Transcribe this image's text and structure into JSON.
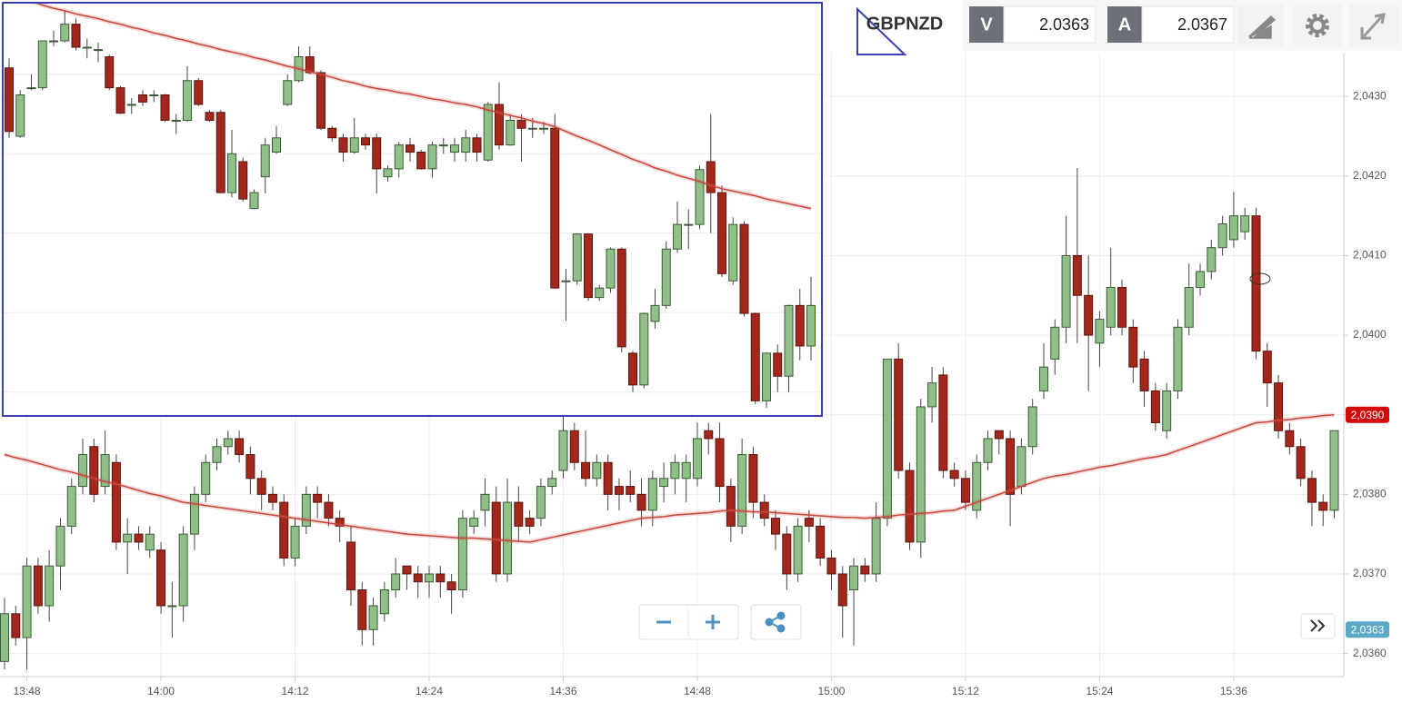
{
  "header": {
    "symbol": "GBPNZD",
    "bid_label": "V",
    "bid": 2.0363,
    "ask_label": "A",
    "ask": 2.0367
  },
  "chart_data": [
    {
      "type": "candlestick",
      "categories": [
        null,
        null,
        "13:48",
        null,
        null,
        null,
        null,
        null,
        null,
        null,
        null,
        null,
        null,
        null,
        "14:00",
        null,
        null,
        null,
        null,
        null,
        null,
        null,
        null,
        null,
        null,
        null,
        "14:12",
        null,
        null,
        null,
        null,
        null,
        null,
        null,
        null,
        null,
        null,
        null,
        "14:24",
        null,
        null,
        null,
        null,
        null,
        null,
        null,
        null,
        null,
        null,
        null,
        "14:36",
        null,
        null,
        null,
        null,
        null,
        null,
        null,
        null,
        null,
        null,
        null,
        "14:48",
        null,
        null,
        null,
        null,
        null,
        null,
        null,
        null,
        null,
        null,
        null,
        "15:00",
        null,
        null,
        null,
        null,
        null,
        null,
        null,
        null,
        null,
        null,
        null,
        "15:12",
        null,
        null,
        null,
        null,
        null,
        null,
        null,
        null,
        null,
        null,
        null,
        "15:24",
        null,
        null,
        null,
        null,
        null,
        null,
        null,
        null,
        null,
        null,
        null,
        "15:36",
        null,
        null,
        null,
        null,
        null,
        null,
        null,
        null,
        null
      ],
      "open": [
        2.0359,
        2.0365,
        2.0362,
        2.0371,
        2.0366,
        2.0371,
        2.0376,
        2.0381,
        2.0386,
        2.0381,
        2.0384,
        2.0374,
        2.0375,
        2.0373,
        2.0373,
        2.0366,
        2.0366,
        2.0375,
        2.038,
        2.0384,
        2.0386,
        2.0387,
        2.0385,
        2.0382,
        2.038,
        2.0379,
        2.0372,
        2.0376,
        2.038,
        2.0379,
        2.0377,
        2.0374,
        2.0368,
        2.0363,
        2.0365,
        2.0368,
        2.0371,
        2.037,
        2.0369,
        2.037,
        2.0369,
        2.0368,
        2.0376,
        2.0378,
        2.0379,
        2.037,
        2.0379,
        2.0377,
        2.0377,
        2.0381,
        2.0383,
        2.0388,
        2.0384,
        2.0382,
        2.0384,
        2.0381,
        2.0381,
        2.038,
        2.0378,
        2.0381,
        2.0382,
        2.0382,
        2.0382,
        2.0388,
        2.0387,
        2.0381,
        2.0376,
        2.0385,
        2.0379,
        2.0377,
        2.0375,
        2.037,
        2.0377,
        2.0376,
        2.0372,
        2.037,
        2.0368,
        2.0371,
        2.037,
        2.0377,
        2.0397,
        2.0383,
        2.0374,
        2.0391,
        2.0395,
        2.0383,
        2.0382,
        2.0378,
        2.0384,
        2.0388,
        2.0387,
        2.0381,
        2.0386,
        2.0393,
        2.0397,
        2.0401,
        2.041,
        2.0405,
        2.0399,
        2.0401,
        2.0406,
        2.0401,
        2.0397,
        2.0393,
        2.0388,
        2.0393,
        2.0401,
        2.0406,
        2.0408,
        2.0411,
        2.0412,
        2.0413,
        2.0415,
        2.0398,
        2.0394,
        2.0388,
        2.0386,
        2.0382,
        2.0379,
        2.0378
      ],
      "high": [
        2.0367,
        2.0366,
        2.0372,
        2.0372,
        2.0373,
        2.0377,
        2.0382,
        2.0387,
        2.0387,
        2.0388,
        2.0385,
        2.0377,
        2.0376,
        2.0376,
        2.0374,
        2.0369,
        2.0376,
        2.0381,
        2.0385,
        2.0387,
        2.0388,
        2.0388,
        2.0386,
        2.0383,
        2.0381,
        2.038,
        2.0377,
        2.0381,
        2.0381,
        2.038,
        2.0378,
        2.0376,
        2.0369,
        2.0367,
        2.0369,
        2.0372,
        2.0371,
        2.0371,
        2.0371,
        2.0371,
        2.037,
        2.0378,
        2.0378,
        2.0382,
        2.0381,
        2.0382,
        2.0381,
        2.0378,
        2.0382,
        2.0383,
        2.0391,
        2.0389,
        2.0388,
        2.0385,
        2.0385,
        2.0382,
        2.0383,
        2.0382,
        2.0383,
        2.0384,
        2.0385,
        2.0385,
        2.0389,
        2.0389,
        2.0389,
        2.0382,
        2.0387,
        2.0386,
        2.038,
        2.0378,
        2.0376,
        2.0377,
        2.0378,
        2.0377,
        2.0373,
        2.0371,
        2.0372,
        2.0372,
        2.0379,
        2.0397,
        2.0399,
        2.0384,
        2.0392,
        2.0396,
        2.0396,
        2.0384,
        2.0383,
        2.0385,
        2.0388,
        2.0388,
        2.0388,
        2.0387,
        2.0392,
        2.0399,
        2.0402,
        2.0415,
        2.0421,
        2.041,
        2.0403,
        2.0411,
        2.0407,
        2.0402,
        2.0398,
        2.0394,
        2.0394,
        2.0402,
        2.0409,
        2.0409,
        2.0412,
        2.0415,
        2.0418,
        2.0416,
        2.0416,
        2.0399,
        2.0395,
        2.0389,
        2.0387,
        2.0383,
        2.038,
        2.0388
      ],
      "low": [
        2.0358,
        2.0361,
        2.0358,
        2.0365,
        2.0364,
        2.0368,
        2.0375,
        2.038,
        2.0379,
        2.038,
        2.0373,
        2.037,
        2.0373,
        2.0372,
        2.0365,
        2.0362,
        2.0364,
        2.0373,
        2.0379,
        2.0383,
        2.0385,
        2.0384,
        2.038,
        2.0378,
        2.0378,
        2.0371,
        2.0371,
        2.0375,
        2.0377,
        2.0376,
        2.0374,
        2.0366,
        2.0361,
        2.0361,
        2.0364,
        2.0367,
        2.0368,
        2.0367,
        2.0367,
        2.0367,
        2.0365,
        2.0367,
        2.0375,
        2.0376,
        2.0369,
        2.0369,
        2.0374,
        2.0375,
        2.0376,
        2.038,
        2.0382,
        2.0383,
        2.0381,
        2.0381,
        2.0378,
        2.0378,
        2.0379,
        2.0376,
        2.0376,
        2.0379,
        2.038,
        2.0379,
        2.0381,
        2.0385,
        2.0379,
        2.0374,
        2.0375,
        2.0377,
        2.0376,
        2.0373,
        2.0368,
        2.0369,
        2.0374,
        2.0371,
        2.0368,
        2.0362,
        2.0361,
        2.0369,
        2.0369,
        2.0376,
        2.0382,
        2.0373,
        2.0372,
        2.0389,
        2.0382,
        2.0381,
        2.0378,
        2.0377,
        2.0383,
        2.0385,
        2.0376,
        2.038,
        2.0385,
        2.0392,
        2.0395,
        2.0399,
        2.0399,
        2.0393,
        2.0396,
        2.04,
        2.04,
        2.0394,
        2.0391,
        2.0388,
        2.0387,
        2.0392,
        2.04,
        2.0405,
        2.0407,
        2.041,
        2.0411,
        2.0412,
        2.0397,
        2.0391,
        2.0387,
        2.0385,
        2.0381,
        2.0376,
        2.0376,
        2.0377
      ],
      "close": [
        2.0365,
        2.0362,
        2.0371,
        2.0366,
        2.0371,
        2.0376,
        2.0381,
        2.0385,
        2.038,
        2.0385,
        2.0374,
        2.0375,
        2.0374,
        2.0375,
        2.0366,
        2.0366,
        2.0375,
        2.038,
        2.0384,
        2.0386,
        2.0387,
        2.0385,
        2.0382,
        2.038,
        2.0379,
        2.0372,
        2.0376,
        2.038,
        2.0379,
        2.0377,
        2.0376,
        2.0368,
        2.0363,
        2.0366,
        2.0368,
        2.037,
        2.037,
        2.0369,
        2.037,
        2.0369,
        2.0368,
        2.0377,
        2.0377,
        2.038,
        2.037,
        2.0379,
        2.0376,
        2.0376,
        2.0381,
        2.0382,
        2.0388,
        2.0384,
        2.0382,
        2.0384,
        2.038,
        2.038,
        2.038,
        2.0378,
        2.0382,
        2.0382,
        2.0384,
        2.0384,
        2.0387,
        2.0387,
        2.0381,
        2.0376,
        2.0385,
        2.0379,
        2.0377,
        2.0375,
        2.037,
        2.0376,
        2.0376,
        2.0372,
        2.037,
        2.0366,
        2.0371,
        2.037,
        2.0377,
        2.0397,
        2.0383,
        2.0374,
        2.0391,
        2.0394,
        2.0383,
        2.0382,
        2.0379,
        2.0384,
        2.0387,
        2.0387,
        2.038,
        2.0386,
        2.0391,
        2.0396,
        2.0401,
        2.041,
        2.0405,
        2.04,
        2.0402,
        2.0406,
        2.0401,
        2.0396,
        2.0393,
        2.0389,
        2.0393,
        2.0401,
        2.0406,
        2.0408,
        2.0411,
        2.0414,
        2.0415,
        2.0415,
        2.0398,
        2.0394,
        2.0388,
        2.0386,
        2.0382,
        2.0379,
        2.0378,
        2.0388
      ],
      "up_color": "#8fc088",
      "down_color": "#a3281b",
      "moving_average": {
        "color": "#c9463d",
        "values": [
          2.0385,
          2.03846,
          2.03843,
          2.03839,
          2.03835,
          2.03831,
          2.03828,
          2.03824,
          2.0382,
          2.03816,
          2.03813,
          2.03809,
          2.03805,
          2.03801,
          2.03798,
          2.03794,
          2.0379,
          2.03788,
          2.03786,
          2.03784,
          2.03782,
          2.0378,
          2.03778,
          2.03776,
          2.03774,
          2.03772,
          2.0377,
          2.03768,
          2.03766,
          2.03764,
          2.03762,
          2.0376,
          2.03758,
          2.03756,
          2.03754,
          2.03752,
          2.0375,
          2.03749,
          2.03748,
          2.03747,
          2.03746,
          2.03745,
          2.03745,
          2.03744,
          2.03743,
          2.03742,
          2.03741,
          2.0374,
          2.03743,
          2.03746,
          2.03749,
          2.03752,
          2.03755,
          2.03758,
          2.03761,
          2.03764,
          2.03767,
          2.0377,
          2.03771,
          2.03772,
          2.03774,
          2.03775,
          2.03776,
          2.03777,
          2.03779,
          2.0378,
          2.03779,
          2.03778,
          2.03778,
          2.03777,
          2.03776,
          2.03775,
          2.03774,
          2.03773,
          2.03772,
          2.03771,
          2.03771,
          2.0377,
          2.03771,
          2.03772,
          2.03774,
          2.03775,
          2.03776,
          2.03777,
          2.03779,
          2.0378,
          2.03785,
          2.0379,
          2.03795,
          2.038,
          2.03805,
          2.0381,
          2.03815,
          2.0382,
          2.03823,
          2.03825,
          2.03828,
          2.03831,
          2.03834,
          2.03836,
          2.03839,
          2.03842,
          2.03845,
          2.03847,
          2.0385,
          2.03855,
          2.0386,
          2.03865,
          2.0387,
          2.03875,
          2.0388,
          2.03885,
          2.0389,
          2.03891,
          2.03893,
          2.03894,
          2.03896,
          2.03897,
          2.03899,
          2.039
        ]
      },
      "ylim": [
        2.03571,
        2.04355
      ],
      "yticks": [
        {
          "value": 2.036,
          "label": "2,0360"
        },
        {
          "value": 2.037,
          "label": "2,0370"
        },
        {
          "value": 2.038,
          "label": "2,0380"
        },
        {
          "value": 2.039,
          "label": "2,0390"
        },
        {
          "value": 2.04,
          "label": "2,0400"
        },
        {
          "value": 2.041,
          "label": "2,0410"
        },
        {
          "value": 2.042,
          "label": "2,0420"
        },
        {
          "value": 2.043,
          "label": "2,0430"
        }
      ],
      "price_markers": [
        {
          "value": 2.039,
          "label": "2,0390",
          "color": "#d40a0a"
        },
        {
          "value": 2.0363,
          "label": "2,0363",
          "color": "#5aaac8"
        }
      ],
      "grid": true
    },
    {
      "type": "candlestick",
      "open": [
        2.04238,
        2.04152,
        2.04213,
        2.04213,
        2.04272,
        2.04272,
        2.04293,
        2.04264,
        2.04261,
        2.04252,
        2.04213,
        2.04192,
        2.04204,
        2.04204,
        2.04204,
        2.04172,
        2.04172,
        2.04222,
        2.04182,
        2.04182,
        2.04081,
        2.0412,
        2.04061,
        2.04101,
        2.04132,
        2.04192,
        2.04222,
        2.04252,
        2.04232,
        2.04162,
        2.0415,
        2.04132,
        2.0415,
        2.0415,
        2.04101,
        2.04111,
        2.04141,
        2.04132,
        2.04111,
        2.04141,
        2.04132,
        2.04132,
        2.0415,
        2.04122,
        2.04192,
        2.04141,
        2.04172,
        2.04162,
        2.04162,
        2.04162,
        2.0397,
        2.0397,
        2.04029,
        2.03949,
        2.03961,
        2.0401,
        2.03879,
        2.03839,
        2.03919,
        2.03939,
        2.0401,
        2.04041,
        2.04041,
        2.0412,
        2.04081,
        2.0397,
        2.04041,
        2.03929,
        2.03819,
        2.03879,
        2.0385,
        2.03939,
        2.03888
      ],
      "high": [
        2.0425,
        2.0421,
        2.0423,
        2.04272,
        2.04285,
        2.0431,
        2.043,
        2.04275,
        2.0427,
        2.04255,
        2.04215,
        2.042,
        2.0421,
        2.0421,
        2.04205,
        2.0418,
        2.0424,
        2.04225,
        2.04185,
        2.04185,
        2.0416,
        2.04125,
        2.04085,
        2.0415,
        2.04165,
        2.0423,
        2.04265,
        2.04265,
        2.04235,
        2.04165,
        2.04155,
        2.04175,
        2.04155,
        2.04155,
        2.04115,
        2.04145,
        2.0415,
        2.04135,
        2.04145,
        2.0415,
        2.0415,
        2.0416,
        2.04155,
        2.04195,
        2.0422,
        2.0418,
        2.0418,
        2.04175,
        2.0417,
        2.0418,
        2.03985,
        2.0403,
        2.0403,
        2.03965,
        2.04012,
        2.04012,
        2.03882,
        2.0393,
        2.0396,
        2.0402,
        2.0407,
        2.0406,
        2.04115,
        2.0418,
        2.0409,
        2.0405,
        2.04045,
        2.0393,
        2.0388,
        2.0389,
        2.0394,
        2.0396,
        2.03975
      ],
      "low": [
        2.0415,
        2.0415,
        2.0421,
        2.0421,
        2.04265,
        2.0427,
        2.0426,
        2.0425,
        2.04245,
        2.0421,
        2.0418,
        2.0418,
        2.0419,
        2.04195,
        2.0417,
        2.04155,
        2.0417,
        2.0419,
        2.0417,
        2.0408,
        2.04075,
        2.0407,
        2.0406,
        2.0408,
        2.0413,
        2.0419,
        2.0422,
        2.0423,
        2.0416,
        2.04145,
        2.0412,
        2.0413,
        2.04135,
        2.0408,
        2.04095,
        2.041,
        2.0412,
        2.0411,
        2.041,
        2.0413,
        2.0412,
        2.0412,
        2.0412,
        2.0412,
        2.04135,
        2.0414,
        2.0412,
        2.0415,
        2.04155,
        2.0396,
        2.0392,
        2.03965,
        2.03945,
        2.03945,
        2.03955,
        2.0388,
        2.0383,
        2.03835,
        2.0391,
        2.03935,
        2.04005,
        2.0401,
        2.04035,
        2.0403,
        2.03975,
        2.03965,
        2.03925,
        2.03815,
        2.0381,
        2.0383,
        2.0383,
        2.0387,
        2.0387
      ],
      "close": [
        2.04158,
        2.04204,
        2.04213,
        2.04272,
        2.04272,
        2.04293,
        2.04264,
        2.04264,
        2.04261,
        2.04213,
        2.04181,
        2.04192,
        2.04195,
        2.04204,
        2.04172,
        2.04172,
        2.04222,
        2.04192,
        2.04172,
        2.04081,
        2.0413,
        2.04073,
        2.04081,
        2.04141,
        2.0415,
        2.04222,
        2.04252,
        2.04232,
        2.04162,
        2.0415,
        2.04132,
        2.0415,
        2.04141,
        2.04111,
        2.04111,
        2.04141,
        2.04132,
        2.04111,
        2.04141,
        2.04141,
        2.04141,
        2.0415,
        2.04132,
        2.04192,
        2.04141,
        2.04172,
        2.04162,
        2.04162,
        2.04162,
        2.03961,
        2.0397,
        2.04029,
        2.03949,
        2.03961,
        2.0401,
        2.03887,
        2.03839,
        2.03929,
        2.03939,
        2.0401,
        2.04041,
        2.04041,
        2.0411,
        2.04081,
        2.03979,
        2.04041,
        2.03929,
        2.03819,
        2.03879,
        2.0385,
        2.03939,
        2.03888,
        2.03939
      ],
      "up_color": "#8fc088",
      "down_color": "#a3281b",
      "moving_average": {
        "color": "#c9463d",
        "values": [
          2.0433,
          2.04326,
          2.04322,
          2.04317,
          2.04313,
          2.0431,
          2.04306,
          2.04303,
          2.043,
          2.04296,
          2.04293,
          2.04289,
          2.04286,
          2.04282,
          2.04279,
          2.04275,
          2.04272,
          2.04268,
          2.04265,
          2.04261,
          2.04258,
          2.04255,
          2.04251,
          2.04248,
          2.04244,
          2.0424,
          2.04237,
          2.04233,
          2.0423,
          2.04226,
          2.04222,
          2.04219,
          2.04215,
          2.04212,
          2.0421,
          2.04207,
          2.04205,
          2.04202,
          2.04199,
          2.04197,
          2.04194,
          2.04192,
          2.04189,
          2.04185,
          2.04182,
          2.04178,
          2.04175,
          2.04171,
          2.04168,
          2.04164,
          2.04158,
          2.04152,
          2.04147,
          2.04141,
          2.04135,
          2.04129,
          2.04123,
          2.04118,
          2.04112,
          2.04108,
          2.04103,
          2.04099,
          2.04095,
          2.0409,
          2.04086,
          2.04083,
          2.0408,
          2.04077,
          2.04073,
          2.0407,
          2.04067,
          2.04064,
          2.04061
        ]
      },
      "ylim": [
        2.038,
        2.0432
      ],
      "grid_lines": [
        2.0383,
        2.0393,
        2.0403,
        2.0413,
        2.0423
      ]
    }
  ]
}
